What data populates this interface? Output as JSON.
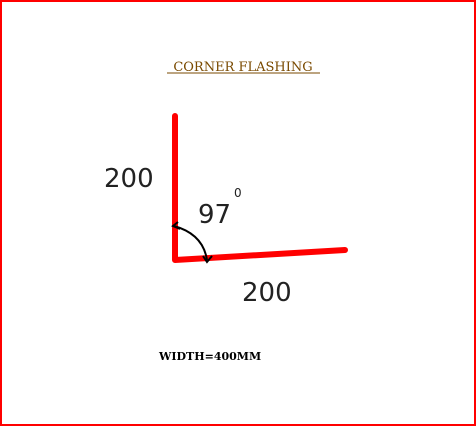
{
  "drawing": {
    "title": "CORNER  FLASHING",
    "leg_vertical_length": "200",
    "leg_horizontal_length": "200",
    "angle_value": "97",
    "angle_degree_mark": "0",
    "width_note": "WIDTH=400MM"
  },
  "colors": {
    "frame": "#ff0000",
    "flashing": "#ff0000",
    "title": "#7a4a00",
    "dimension_text": "#222222",
    "angle_arc": "#000000",
    "note_text": "#000000"
  }
}
